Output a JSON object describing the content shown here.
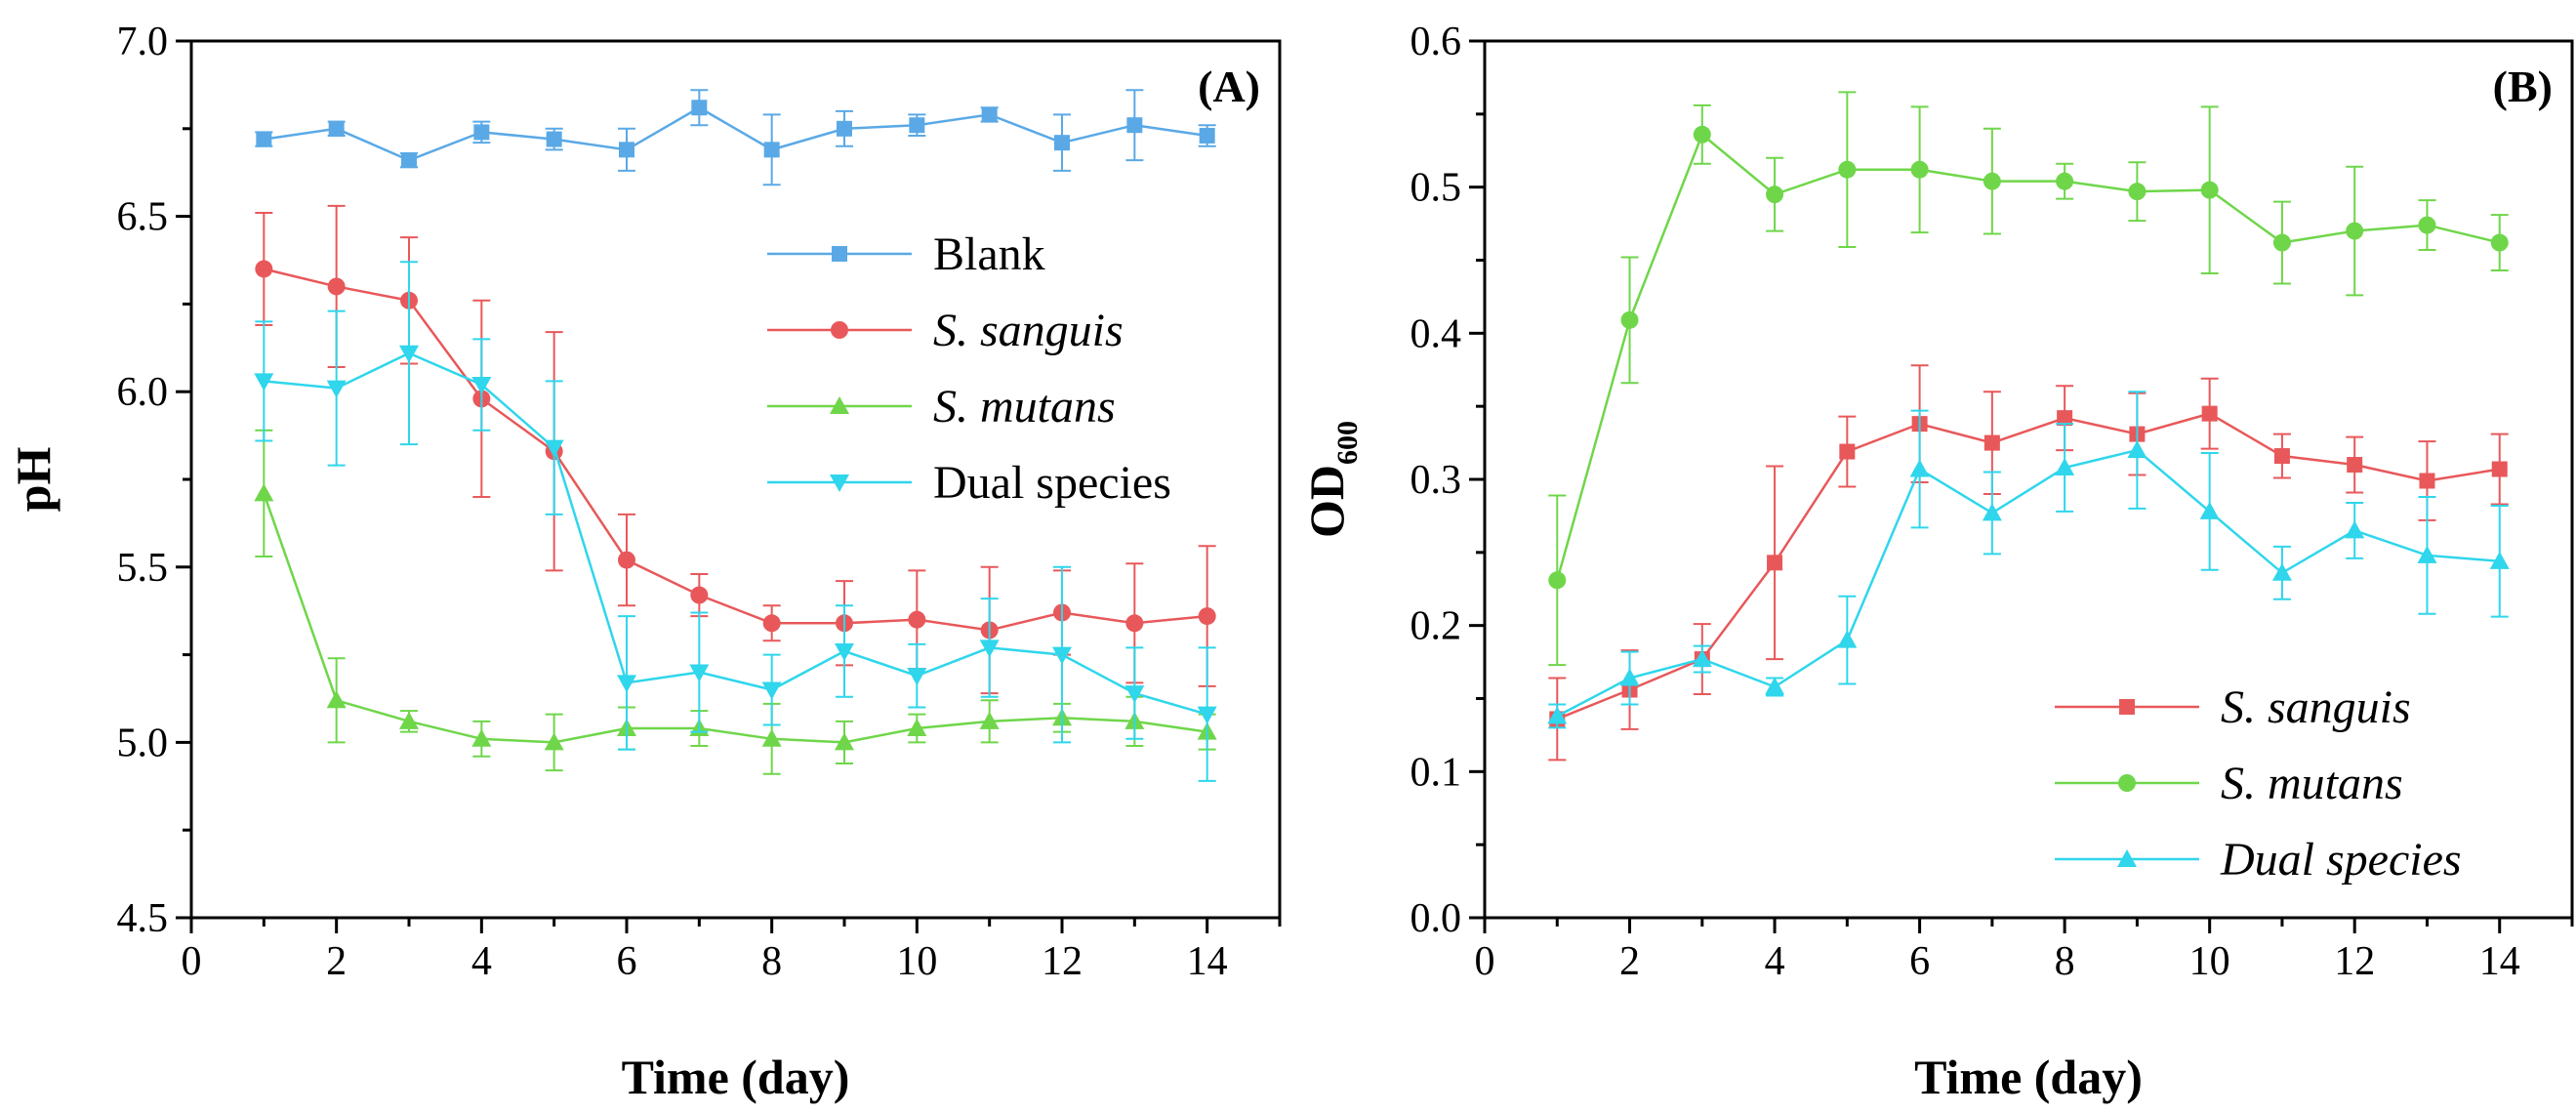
{
  "chart_data": [
    {
      "type": "line",
      "panel_label": "(A)",
      "xlabel": "Time (day)",
      "ylabel": "pH",
      "xlim": [
        0,
        15
      ],
      "ylim": [
        4.5,
        7.0
      ],
      "xticks": [
        "0",
        "2",
        "4",
        "6",
        "8",
        "10",
        "12",
        "14"
      ],
      "yticks": [
        "4.5",
        "5.0",
        "5.5",
        "6.0",
        "6.5",
        "7.0"
      ],
      "grid": false,
      "legend_position": "upper-right",
      "x": [
        1,
        2,
        3,
        4,
        5,
        6,
        7,
        8,
        9,
        10,
        11,
        12,
        13,
        14
      ],
      "series": [
        {
          "name": "Blank",
          "italic": false,
          "color": "#5AA9E6",
          "marker": "square",
          "values": [
            6.72,
            6.75,
            6.66,
            6.74,
            6.72,
            6.69,
            6.81,
            6.69,
            6.75,
            6.76,
            6.79,
            6.71,
            6.76,
            6.73
          ],
          "errors": [
            0.02,
            0.02,
            0.02,
            0.03,
            0.03,
            0.06,
            0.05,
            0.1,
            0.05,
            0.03,
            0.02,
            0.08,
            0.1,
            0.03
          ]
        },
        {
          "name": "S. sanguis",
          "italic": true,
          "color": "#E8585A",
          "marker": "circle",
          "values": [
            6.35,
            6.3,
            6.26,
            5.98,
            5.83,
            5.52,
            5.42,
            5.34,
            5.34,
            5.35,
            5.32,
            5.37,
            5.34,
            5.36
          ],
          "errors": [
            0.16,
            0.23,
            0.18,
            0.28,
            0.34,
            0.13,
            0.06,
            0.05,
            0.12,
            0.14,
            0.18,
            0.12,
            0.17,
            0.2
          ]
        },
        {
          "name": "S. mutans",
          "italic": true,
          "color": "#6FD64A",
          "marker": "triangle-up",
          "values": [
            5.71,
            5.12,
            5.06,
            5.01,
            5.0,
            5.04,
            5.04,
            5.01,
            5.0,
            5.04,
            5.06,
            5.07,
            5.06,
            5.03
          ],
          "errors": [
            0.18,
            0.12,
            0.03,
            0.05,
            0.08,
            0.06,
            0.05,
            0.1,
            0.06,
            0.04,
            0.06,
            0.04,
            0.07,
            0.05
          ]
        },
        {
          "name": "Dual species",
          "italic": false,
          "color": "#2FD6EC",
          "marker": "triangle-down",
          "values": [
            6.03,
            6.01,
            6.11,
            6.02,
            5.84,
            5.17,
            5.2,
            5.15,
            5.26,
            5.19,
            5.27,
            5.25,
            5.14,
            5.08
          ],
          "errors": [
            0.17,
            0.22,
            0.26,
            0.13,
            0.19,
            0.19,
            0.17,
            0.1,
            0.13,
            0.09,
            0.14,
            0.25,
            0.13,
            0.19
          ]
        }
      ]
    },
    {
      "type": "line",
      "panel_label": "(B)",
      "xlabel": "Time (day)",
      "ylabel": "OD",
      "ylabel_subscript": "600",
      "xlim": [
        0,
        15
      ],
      "ylim": [
        0.0,
        0.6
      ],
      "xticks": [
        "0",
        "2",
        "4",
        "6",
        "8",
        "10",
        "12",
        "14"
      ],
      "yticks": [
        "0.0",
        "0.1",
        "0.2",
        "0.3",
        "0.4",
        "0.5",
        "0.6"
      ],
      "grid": false,
      "legend_position": "lower-right",
      "x": [
        1,
        2,
        3,
        4,
        5,
        6,
        7,
        8,
        9,
        10,
        11,
        12,
        13,
        14
      ],
      "series": [
        {
          "name": "S. sanguis",
          "italic": true,
          "color": "#E8585A",
          "marker": "square",
          "values": [
            0.136,
            0.156,
            0.177,
            0.243,
            0.319,
            0.338,
            0.325,
            0.342,
            0.331,
            0.345,
            0.316,
            0.31,
            0.299,
            0.307
          ],
          "errors": [
            0.028,
            0.027,
            0.024,
            0.066,
            0.024,
            0.04,
            0.035,
            0.022,
            0.028,
            0.024,
            0.015,
            0.019,
            0.027,
            0.024
          ]
        },
        {
          "name": "S. mutans",
          "italic": true,
          "color": "#6FD64A",
          "marker": "circle",
          "values": [
            0.231,
            0.409,
            0.536,
            0.495,
            0.512,
            0.512,
            0.504,
            0.504,
            0.497,
            0.498,
            0.462,
            0.47,
            0.474,
            0.462
          ],
          "errors": [
            0.058,
            0.043,
            0.02,
            0.025,
            0.053,
            0.043,
            0.036,
            0.012,
            0.02,
            0.057,
            0.028,
            0.044,
            0.017,
            0.019
          ]
        },
        {
          "name": "Dual species",
          "italic": true,
          "color": "#2FD6EC",
          "marker": "triangle-up",
          "values": [
            0.138,
            0.164,
            0.177,
            0.158,
            0.19,
            0.307,
            0.277,
            0.308,
            0.32,
            0.278,
            0.236,
            0.265,
            0.248,
            0.244
          ],
          "errors": [
            0.008,
            0.018,
            0.009,
            0.006,
            0.03,
            0.04,
            0.028,
            0.03,
            0.04,
            0.04,
            0.018,
            0.019,
            0.04,
            0.038
          ]
        }
      ]
    }
  ]
}
